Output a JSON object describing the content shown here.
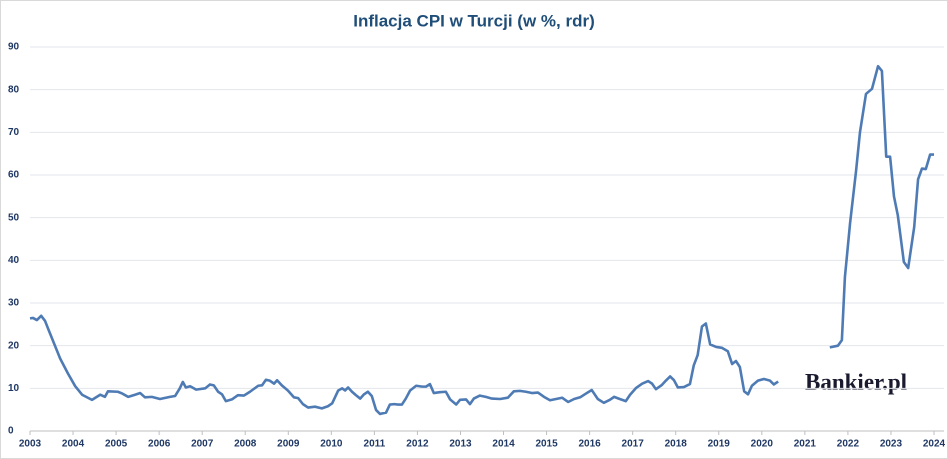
{
  "chart_data": {
    "type": "line",
    "title": "Inflacja CPI w Turcji (w %, rdr)",
    "watermark": "Bankier.pl",
    "xlim": [
      2003,
      2024
    ],
    "xticks": [
      2003,
      2004,
      2005,
      2006,
      2007,
      2008,
      2009,
      2010,
      2011,
      2012,
      2013,
      2014,
      2015,
      2016,
      2017,
      2018,
      2019,
      2020,
      2021,
      2022,
      2023,
      2024
    ],
    "ylim": [
      0,
      90
    ],
    "yticks": [
      0,
      10,
      20,
      30,
      40,
      50,
      60,
      70,
      80,
      90
    ],
    "grid": true,
    "series": [
      {
        "color": "#4f7bb5",
        "x": [
          2003.0,
          2003.07,
          2003.16,
          2003.26,
          2003.35,
          2003.42,
          2003.7,
          2003.88,
          2004.05,
          2004.21,
          2004.44,
          2004.63,
          2004.74,
          2004.81,
          2005.04,
          2005.14,
          2005.28,
          2005.44,
          2005.56,
          2005.67,
          2005.83,
          2006.02,
          2006.25,
          2006.37,
          2006.48,
          2006.55,
          2006.62,
          2006.72,
          2006.86,
          2007.07,
          2007.18,
          2007.27,
          2007.37,
          2007.46,
          2007.55,
          2007.69,
          2007.83,
          2007.97,
          2008.11,
          2008.3,
          2008.39,
          2008.48,
          2008.57,
          2008.67,
          2008.74,
          2008.85,
          2008.99,
          2009.13,
          2009.23,
          2009.34,
          2009.46,
          2009.62,
          2009.78,
          2009.92,
          2010.02,
          2010.16,
          2010.25,
          2010.32,
          2010.39,
          2010.48,
          2010.57,
          2010.67,
          2010.76,
          2010.85,
          2010.94,
          2011.04,
          2011.13,
          2011.27,
          2011.36,
          2011.46,
          2011.55,
          2011.64,
          2011.73,
          2011.83,
          2011.97,
          2012.11,
          2012.2,
          2012.29,
          2012.38,
          2012.52,
          2012.66,
          2012.76,
          2012.9,
          2012.99,
          2013.13,
          2013.22,
          2013.31,
          2013.45,
          2013.59,
          2013.73,
          2013.92,
          2014.1,
          2014.24,
          2014.38,
          2014.52,
          2014.66,
          2014.8,
          2014.94,
          2015.08,
          2015.22,
          2015.36,
          2015.5,
          2015.64,
          2015.78,
          2015.92,
          2016.05,
          2016.19,
          2016.33,
          2016.47,
          2016.57,
          2016.7,
          2016.84,
          2016.94,
          2017.08,
          2017.22,
          2017.36,
          2017.45,
          2017.54,
          2017.68,
          2017.77,
          2017.87,
          2017.96,
          2018.05,
          2018.19,
          2018.33,
          2018.42,
          2018.51,
          2018.61,
          2018.7,
          2018.8,
          2018.94,
          2019.07,
          2019.21,
          2019.31,
          2019.4,
          2019.49,
          2019.59,
          2019.68,
          2019.77,
          2019.91,
          2020.05,
          2020.19,
          2020.28,
          2020.38,
          2021.0,
          2021.58,
          2021.77,
          2021.86,
          2021.93,
          2022.05,
          2022.19,
          2022.28,
          2022.42,
          2022.56,
          2022.7,
          2022.79,
          2022.89,
          2022.98,
          2023.07,
          2023.16,
          2023.3,
          2023.4,
          2023.54,
          2023.63,
          2023.72,
          2023.81,
          2023.91,
          2024.0
        ],
        "values": [
          26.4,
          26.5,
          26,
          27,
          25.8,
          24,
          17,
          13.5,
          10.5,
          8.5,
          7.3,
          8.5,
          8.0,
          9.3,
          9.2,
          8.8,
          8.0,
          8.5,
          8.9,
          7.9,
          8.0,
          7.5,
          8.0,
          8.2,
          10.0,
          11.5,
          10.2,
          10.5,
          9.7,
          10.0,
          10.9,
          10.7,
          9.2,
          8.6,
          7.0,
          7.4,
          8.4,
          8.3,
          9.2,
          10.6,
          10.7,
          12.0,
          11.8,
          11.1,
          11.9,
          10.7,
          9.5,
          7.9,
          7.7,
          6.3,
          5.5,
          5.7,
          5.3,
          5.8,
          6.5,
          9.5,
          10.0,
          9.5,
          10.2,
          9.2,
          8.4,
          7.6,
          8.6,
          9.2,
          8.2,
          4.9,
          4.0,
          4.3,
          6.2,
          6.3,
          6.2,
          6.2,
          7.6,
          9.5,
          10.6,
          10.4,
          10.4,
          11.0,
          8.9,
          9.1,
          9.2,
          7.4,
          6.2,
          7.3,
          7.4,
          6.3,
          7.6,
          8.3,
          8.0,
          7.6,
          7.5,
          7.8,
          9.3,
          9.4,
          9.2,
          8.9,
          9.0,
          8.0,
          7.2,
          7.5,
          7.8,
          6.8,
          7.5,
          7.9,
          8.8,
          9.6,
          7.5,
          6.6,
          7.3,
          8.0,
          7.5,
          7.0,
          8.5,
          10.1,
          11.1,
          11.7,
          11.1,
          9.8,
          10.8,
          11.8,
          12.8,
          11.9,
          10.2,
          10.3,
          11.0,
          15.4,
          17.8,
          24.5,
          25.2,
          20.3,
          19.7,
          19.5,
          18.7,
          15.7,
          16.4,
          15.0,
          9.3,
          8.6,
          10.6,
          11.8,
          12.2,
          11.8,
          10.9,
          11.6,
          null,
          19.6,
          20.0,
          21.3,
          36.0,
          48.7,
          61.0,
          70.0,
          79.0,
          80.2,
          85.5,
          84.4,
          64.3,
          64.3,
          55.0,
          50.5,
          39.6,
          38.2,
          47.8,
          59.0,
          61.5,
          61.4,
          64.8,
          64.8
        ]
      }
    ]
  }
}
